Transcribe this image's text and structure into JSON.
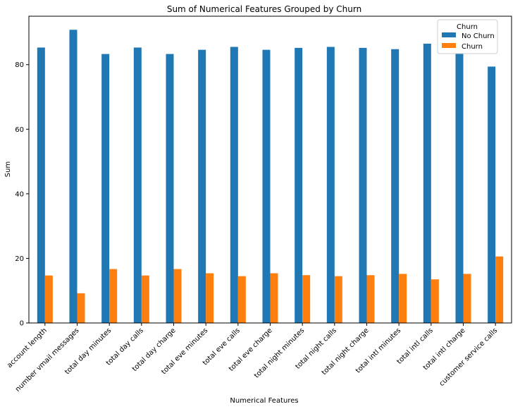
{
  "chart_data": {
    "type": "bar",
    "title": "Sum of Numerical Features Grouped by Churn",
    "xlabel": "Numerical Features",
    "ylabel": "Sum",
    "ylim": [
      0,
      95
    ],
    "yticks": [
      0,
      20,
      40,
      60,
      80
    ],
    "legend": {
      "title": "Churn",
      "placement": "top-right"
    },
    "categories": [
      "account length",
      "number vmail messages",
      "total day minutes",
      "total day calls",
      "total day charge",
      "total eve minutes",
      "total eve calls",
      "total eve charge",
      "total night minutes",
      "total night calls",
      "total night charge",
      "total intl minutes",
      "total intl calls",
      "total intl charge",
      "customer service calls"
    ],
    "series": [
      {
        "name": "No Churn",
        "color": "#1f77b4",
        "values": [
          85.3,
          90.8,
          83.3,
          85.3,
          83.3,
          84.6,
          85.5,
          84.6,
          85.2,
          85.5,
          85.2,
          84.8,
          86.5,
          84.8,
          79.4
        ]
      },
      {
        "name": "Churn",
        "color": "#ff7f0e",
        "values": [
          14.7,
          9.2,
          16.7,
          14.7,
          16.7,
          15.4,
          14.5,
          15.4,
          14.8,
          14.5,
          14.8,
          15.2,
          13.5,
          15.2,
          20.6
        ]
      }
    ],
    "grid": false
  }
}
